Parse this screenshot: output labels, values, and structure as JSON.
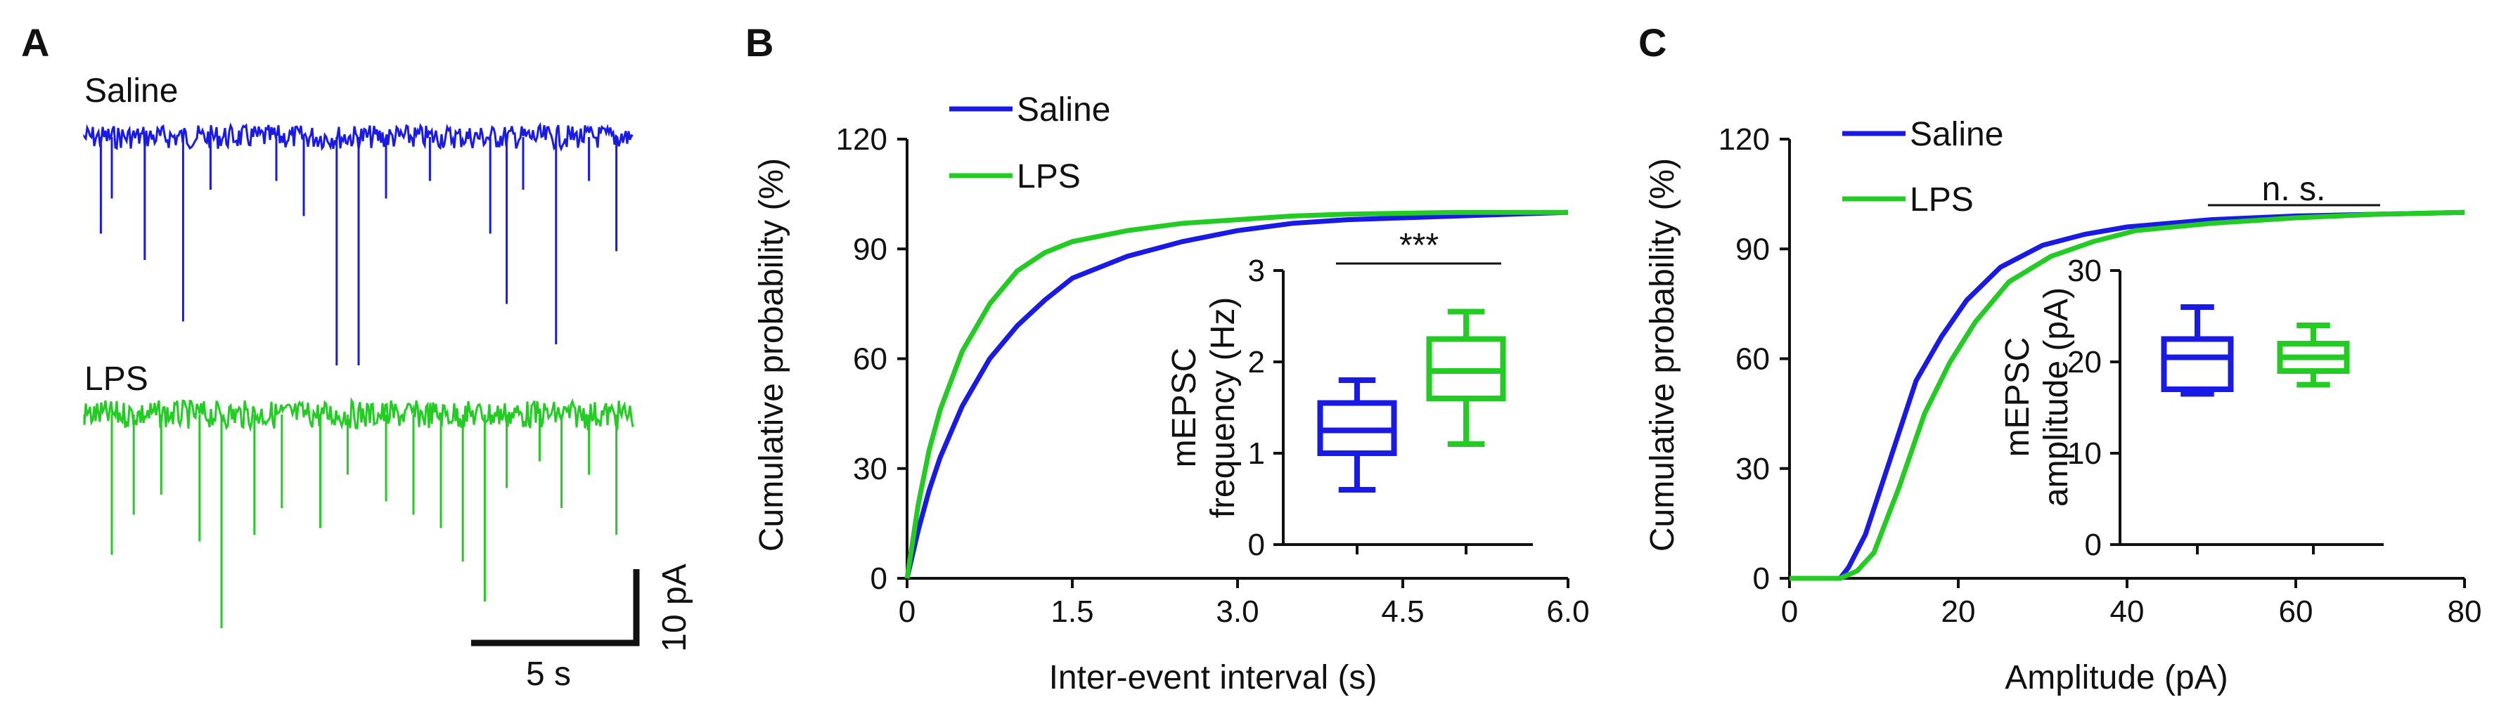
{
  "colors": {
    "saline": "#1a1ae6",
    "lps": "#22cc22",
    "ink": "#111111"
  },
  "panel_a": {
    "label": "A",
    "saline_label": "Saline",
    "lps_label": "LPS",
    "scale_x": "5 s",
    "scale_y": "10 pA",
    "saline_events": [
      {
        "t": 0.03,
        "amp": 0.55
      },
      {
        "t": 0.05,
        "amp": 0.35
      },
      {
        "t": 0.11,
        "amp": 0.7
      },
      {
        "t": 0.18,
        "amp": 1.05
      },
      {
        "t": 0.23,
        "amp": 0.3
      },
      {
        "t": 0.35,
        "amp": 0.25
      },
      {
        "t": 0.4,
        "amp": 0.45
      },
      {
        "t": 0.46,
        "amp": 1.3
      },
      {
        "t": 0.5,
        "amp": 1.3
      },
      {
        "t": 0.55,
        "amp": 0.35
      },
      {
        "t": 0.63,
        "amp": 0.25
      },
      {
        "t": 0.74,
        "amp": 0.55
      },
      {
        "t": 0.77,
        "amp": 0.95
      },
      {
        "t": 0.8,
        "amp": 0.3
      },
      {
        "t": 0.86,
        "amp": 1.18
      },
      {
        "t": 0.92,
        "amp": 0.25
      },
      {
        "t": 0.97,
        "amp": 0.65
      }
    ],
    "lps_events": [
      {
        "t": 0.05,
        "amp": 1.05
      },
      {
        "t": 0.09,
        "amp": 0.75
      },
      {
        "t": 0.14,
        "amp": 0.6
      },
      {
        "t": 0.21,
        "amp": 0.95
      },
      {
        "t": 0.25,
        "amp": 1.6
      },
      {
        "t": 0.31,
        "amp": 0.9
      },
      {
        "t": 0.36,
        "amp": 0.7
      },
      {
        "t": 0.43,
        "amp": 0.85
      },
      {
        "t": 0.48,
        "amp": 0.45
      },
      {
        "t": 0.55,
        "amp": 0.65
      },
      {
        "t": 0.6,
        "amp": 0.75
      },
      {
        "t": 0.65,
        "amp": 0.85
      },
      {
        "t": 0.69,
        "amp": 1.1
      },
      {
        "t": 0.73,
        "amp": 1.4
      },
      {
        "t": 0.77,
        "amp": 0.55
      },
      {
        "t": 0.83,
        "amp": 0.35
      },
      {
        "t": 0.87,
        "amp": 0.7
      },
      {
        "t": 0.92,
        "amp": 0.45
      },
      {
        "t": 0.97,
        "amp": 0.9
      }
    ]
  },
  "chart_data": [
    {
      "panel": "B",
      "type": "line",
      "xlabel": "Inter-event interval (s)",
      "ylabel": "Cumulative probability (%)",
      "xlim": [
        0,
        6.0
      ],
      "ylim": [
        0,
        120
      ],
      "xticks": [
        "0",
        "1.5",
        "3.0",
        "4.5",
        "6.0"
      ],
      "yticks": [
        "0",
        "30",
        "60",
        "90",
        "120"
      ],
      "legend_position": "top-left",
      "series": [
        {
          "name": "Saline",
          "color_key": "saline",
          "x": [
            0,
            0.1,
            0.2,
            0.3,
            0.5,
            0.75,
            1.0,
            1.25,
            1.5,
            2.0,
            2.5,
            3.0,
            3.5,
            4.0,
            5.0,
            6.0
          ],
          "y": [
            0,
            13,
            24,
            33,
            47,
            60,
            69,
            76,
            82,
            88,
            92,
            95,
            97,
            98,
            99,
            100
          ]
        },
        {
          "name": "LPS",
          "color_key": "lps",
          "x": [
            0,
            0.1,
            0.2,
            0.3,
            0.5,
            0.75,
            1.0,
            1.25,
            1.5,
            2.0,
            2.5,
            3.0,
            3.5,
            4.0,
            5.0,
            6.0
          ],
          "y": [
            0,
            20,
            35,
            46,
            62,
            75,
            84,
            89,
            92,
            95,
            97,
            98,
            99,
            99.5,
            100,
            100
          ]
        }
      ],
      "inset": {
        "type": "box",
        "ylabel_line1": "mEPSC",
        "ylabel_line2": "frequency (Hz)",
        "ylim": [
          0,
          3
        ],
        "yticks": [
          "0",
          "1",
          "2",
          "3"
        ],
        "significance": "***",
        "boxes": [
          {
            "name": "Saline",
            "color_key": "saline",
            "min": 0.6,
            "q1": 1.0,
            "median": 1.25,
            "q3": 1.55,
            "max": 1.8
          },
          {
            "name": "LPS",
            "color_key": "lps",
            "min": 1.1,
            "q1": 1.6,
            "median": 1.9,
            "q3": 2.25,
            "max": 2.55
          }
        ]
      }
    },
    {
      "panel": "C",
      "type": "line",
      "xlabel": "Amplitude (pA)",
      "ylabel": "Cumulative probability (%)",
      "xlim": [
        0,
        80
      ],
      "ylim": [
        0,
        120
      ],
      "xticks": [
        "0",
        "20",
        "40",
        "60",
        "80"
      ],
      "yticks": [
        "0",
        "30",
        "60",
        "90",
        "120"
      ],
      "legend_position": "top-left",
      "series": [
        {
          "name": "Saline",
          "color_key": "saline",
          "x": [
            0,
            6,
            7,
            9,
            12,
            15,
            18,
            21,
            25,
            30,
            35,
            40,
            50,
            60,
            70,
            80
          ],
          "y": [
            0,
            0,
            3,
            12,
            33,
            54,
            66,
            76,
            85,
            91,
            94,
            96,
            98,
            99,
            99.5,
            100
          ]
        },
        {
          "name": "LPS",
          "color_key": "lps",
          "x": [
            0,
            6,
            8,
            10,
            13,
            16,
            19,
            22,
            26,
            31,
            36,
            41,
            50,
            60,
            70,
            80
          ],
          "y": [
            0,
            0,
            2,
            7,
            25,
            45,
            59,
            70,
            81,
            88,
            92,
            95,
            97,
            98.5,
            99.5,
            100
          ]
        }
      ],
      "inset": {
        "type": "box",
        "ylabel_line1": "mEPSC",
        "ylabel_line2": "amplitude (pA)",
        "ylim": [
          0,
          30
        ],
        "yticks": [
          "0",
          "10",
          "20",
          "30"
        ],
        "significance": "n. s.",
        "boxes": [
          {
            "name": "Saline",
            "color_key": "saline",
            "min": 16.5,
            "q1": 17.0,
            "median": 20.5,
            "q3": 22.5,
            "max": 26.0
          },
          {
            "name": "LPS",
            "color_key": "lps",
            "min": 17.5,
            "q1": 19.0,
            "median": 20.5,
            "q3": 22.0,
            "max": 24.0
          }
        ]
      }
    }
  ]
}
